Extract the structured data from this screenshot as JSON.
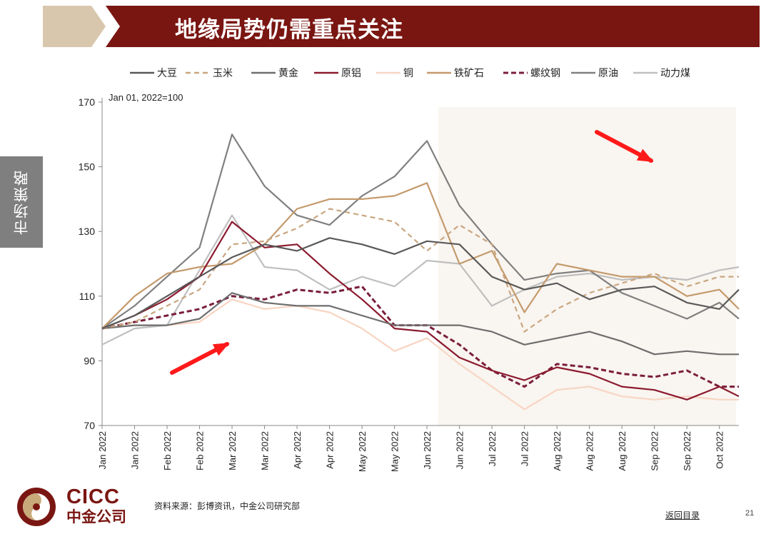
{
  "header": {
    "title": "地缘局势仍需重点关注"
  },
  "side_tab": {
    "label": "市场策略"
  },
  "footer": {
    "source": "资料来源：彭博资讯，中金公司研究部",
    "back_link": "返回目录",
    "page_number": "21",
    "logo_en": "CICC",
    "logo_cn": "中金公司"
  },
  "colors": {
    "brand": "#7a1612",
    "arrow": "#ff1a1a",
    "highlight": "#f9f5f0"
  },
  "chart_data": {
    "type": "line",
    "title": "",
    "annotation": "Jan 01, 2022=100",
    "xlabel": "",
    "ylabel": "",
    "ylim": [
      70,
      170
    ],
    "yticks": [
      70,
      90,
      110,
      130,
      150,
      170
    ],
    "grid": false,
    "legend_position": "top",
    "x_tick_labels": [
      "Jan 2022",
      "Jan 2022",
      "Feb 2022",
      "Feb 2022",
      "Mar 2022",
      "Mar 2022",
      "Apr 2022",
      "Apr 2022",
      "May 2022",
      "May 2022",
      "Jun 2022",
      "Jun 2022",
      "Jul 2022",
      "Jul 2022",
      "Aug 2022",
      "Aug 2022",
      "Aug 2022",
      "Sep 2022",
      "Sep 2022",
      "Oct 2022"
    ],
    "x_count": 20,
    "x_range": [
      0,
      19.6
    ],
    "highlight_from_x": 10.35,
    "series": [
      {
        "name": "大豆",
        "color": "#595959",
        "dash": "solid",
        "x": [
          0,
          1,
          2,
          3,
          4,
          5,
          6,
          7,
          8,
          9,
          10,
          11,
          12,
          13,
          14,
          15,
          16,
          17,
          18,
          19,
          19.6
        ],
        "values": [
          100,
          104,
          110,
          116,
          122,
          126,
          124,
          128,
          126,
          123,
          127,
          126,
          116,
          112,
          114,
          109,
          112,
          113,
          108,
          106,
          112
        ]
      },
      {
        "name": "玉米",
        "color": "#c9a680",
        "dash": "dash",
        "x": [
          0,
          1,
          2,
          3,
          4,
          5,
          6,
          7,
          8,
          9,
          10,
          11,
          12,
          13,
          14,
          15,
          16,
          17,
          18,
          19,
          19.6
        ],
        "values": [
          100,
          102,
          107,
          112,
          126,
          127,
          131,
          137,
          135,
          133,
          124,
          132,
          126,
          99,
          106,
          111,
          114,
          117,
          113,
          116,
          116
        ]
      },
      {
        "name": "黄金",
        "color": "#6e6e6e",
        "dash": "solid",
        "x": [
          0,
          1,
          2,
          3,
          4,
          5,
          6,
          7,
          8,
          9,
          10,
          11,
          12,
          13,
          14,
          15,
          16,
          17,
          18,
          19,
          19.6
        ],
        "values": [
          100,
          101,
          101,
          103,
          111,
          108,
          107,
          107,
          104,
          101,
          101,
          101,
          99,
          95,
          97,
          99,
          96,
          92,
          93,
          92,
          92
        ]
      },
      {
        "name": "原铝",
        "color": "#8b1a2e",
        "dash": "solid",
        "x": [
          0,
          1,
          2,
          3,
          4,
          5,
          6,
          7,
          8,
          9,
          10,
          11,
          12,
          13,
          14,
          15,
          16,
          17,
          18,
          19,
          19.6
        ],
        "values": [
          100,
          104,
          109,
          116,
          133,
          125,
          126,
          117,
          109,
          100,
          99,
          91,
          87,
          84,
          88,
          86,
          82,
          81,
          78,
          82,
          79
        ]
      },
      {
        "name": "铜",
        "color": "#f8d5c3",
        "dash": "solid",
        "x": [
          0,
          1,
          2,
          3,
          4,
          5,
          6,
          7,
          8,
          9,
          10,
          11,
          12,
          13,
          14,
          15,
          16,
          17,
          18,
          19,
          19.6
        ],
        "values": [
          100,
          101,
          101,
          102,
          109,
          106,
          107,
          105,
          100,
          93,
          97,
          89,
          82,
          75,
          81,
          82,
          79,
          78,
          79,
          78,
          78
        ]
      },
      {
        "name": "铁矿石",
        "color": "#c49a6c",
        "dash": "solid",
        "x": [
          0,
          1,
          2,
          3,
          4,
          5,
          6,
          7,
          8,
          9,
          10,
          11,
          12,
          13,
          14,
          15,
          16,
          17,
          18,
          19,
          19.6
        ],
        "values": [
          100,
          110,
          117,
          119,
          120,
          126,
          137,
          140,
          140,
          141,
          145,
          120,
          124,
          105,
          120,
          118,
          116,
          116,
          110,
          112,
          106
        ]
      },
      {
        "name": "螺纹钢",
        "color": "#7a1e3c",
        "dash": "dot",
        "x": [
          0,
          1,
          2,
          3,
          4,
          5,
          6,
          7,
          8,
          9,
          10,
          11,
          12,
          13,
          14,
          15,
          16,
          17,
          18,
          19,
          19.6
        ],
        "values": [
          100,
          102,
          104,
          106,
          110,
          109,
          112,
          111,
          113,
          101,
          101,
          95,
          87,
          82,
          89,
          88,
          86,
          85,
          87,
          82,
          82
        ]
      },
      {
        "name": "原油",
        "color": "#808080",
        "dash": "solid",
        "x": [
          0,
          1,
          2,
          3,
          4,
          5,
          6,
          7,
          8,
          9,
          10,
          11,
          12,
          13,
          14,
          15,
          16,
          17,
          18,
          19,
          19.6
        ],
        "values": [
          100,
          107,
          116,
          125,
          160,
          144,
          135,
          132,
          141,
          147,
          158,
          138,
          126,
          115,
          117,
          118,
          111,
          107,
          103,
          108,
          103
        ]
      },
      {
        "name": "动力煤",
        "color": "#bfbfbf",
        "dash": "solid",
        "x": [
          0,
          1,
          2,
          3,
          4,
          5,
          6,
          7,
          8,
          9,
          10,
          11,
          12,
          13,
          14,
          15,
          16,
          17,
          18,
          19,
          19.6
        ],
        "values": [
          95,
          100,
          101,
          118,
          135,
          119,
          118,
          112,
          116,
          113,
          121,
          120,
          107,
          112,
          116,
          117,
          115,
          116,
          115,
          118,
          119
        ]
      }
    ]
  }
}
